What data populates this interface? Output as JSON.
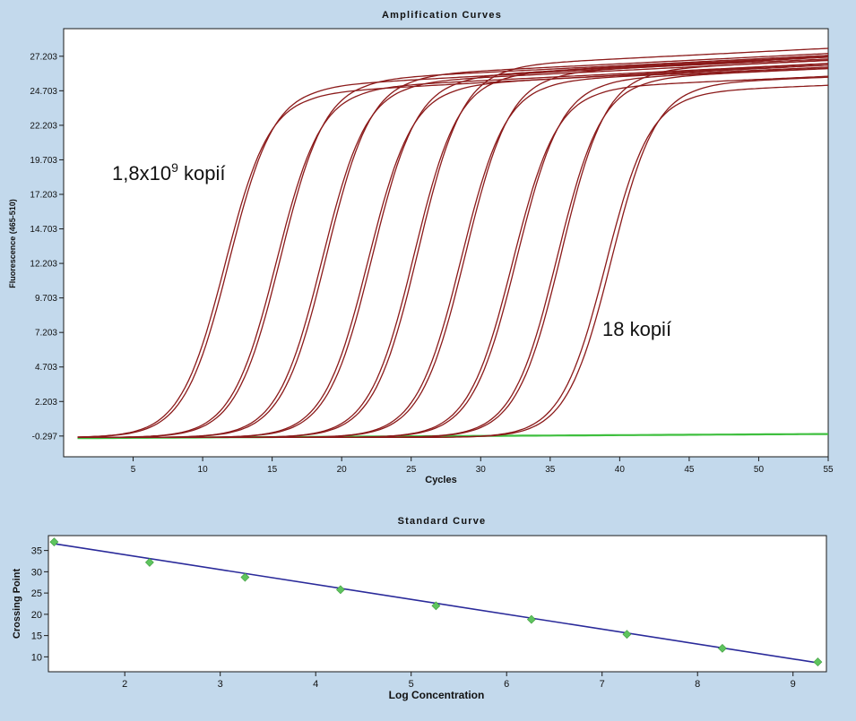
{
  "colors": {
    "background": "#c3d9ec",
    "plot_bg": "#ffffff",
    "sample_curve": "#8b1a1a",
    "negative_control": "#3fbf3f",
    "standard_line": "#2a2a9a",
    "standard_points": "#5ec45e"
  },
  "chart_data": [
    {
      "type": "line",
      "title": "Amplification Curves",
      "xlabel": "Cycles",
      "ylabel": "Fluorescence (465-510)",
      "xlim": [
        0,
        55
      ],
      "ylim": [
        -1.8,
        29.2
      ],
      "grid": false,
      "x_ticks": [
        5,
        10,
        15,
        20,
        25,
        30,
        35,
        40,
        45,
        50,
        55
      ],
      "x_tick_labels": [
        "5",
        "10",
        "15",
        "20",
        "25",
        "30",
        "35",
        "40",
        "45",
        "50",
        "55"
      ],
      "y_ticks": [
        -0.297,
        2.203,
        4.703,
        7.203,
        9.703,
        12.203,
        14.703,
        17.203,
        19.703,
        22.203,
        24.703,
        27.203
      ],
      "y_tick_labels": [
        "-0.297",
        "2.203",
        "4.703",
        "7.203",
        "9.703",
        "12.203",
        "14.703",
        "17.203",
        "19.703",
        "22.203",
        "24.703",
        "27.203"
      ],
      "series": [
        {
          "midpoints": [
            11.6,
            11.9
          ],
          "plateaus": [
            24.6,
            25.1
          ],
          "slope": 0.055
        },
        {
          "midpoints": [
            15.3,
            15.6
          ],
          "plateaus": [
            25.0,
            25.6
          ],
          "slope": 0.05
        },
        {
          "midpoints": [
            18.6,
            18.9
          ],
          "plateaus": [
            25.4,
            25.9
          ],
          "slope": 0.05
        },
        {
          "midpoints": [
            21.9,
            22.2
          ],
          "plateaus": [
            25.2,
            25.8
          ],
          "slope": 0.05
        },
        {
          "midpoints": [
            25.2,
            25.5
          ],
          "plateaus": [
            26.0,
            26.6
          ],
          "slope": 0.05
        },
        {
          "midpoints": [
            28.6,
            28.9
          ],
          "plateaus": [
            25.5,
            26.1
          ],
          "slope": 0.045
        },
        {
          "midpoints": [
            32.3,
            32.6
          ],
          "plateaus": [
            25.0,
            25.6
          ],
          "slope": 0.045
        },
        {
          "midpoints": [
            35.5,
            35.8
          ],
          "plateaus": [
            25.7,
            26.3
          ],
          "slope": 0.045
        },
        {
          "midpoints": [
            39.0,
            39.4
          ],
          "plateaus": [
            24.7,
            25.3
          ],
          "slope": 0.04
        }
      ],
      "baseline": {
        "y_start": -0.45,
        "y_end": -0.15
      },
      "annotations": [
        {
          "text_base": "1,8x10",
          "superscript": "9",
          "text_suffix": " kopií"
        },
        {
          "text": "18 kopií"
        }
      ]
    },
    {
      "type": "scatter",
      "title": "Standard Curve",
      "xlabel": "Log Concentration",
      "ylabel": "Crossing Point",
      "xlim": [
        1.2,
        9.35
      ],
      "ylim": [
        6.5,
        38.5
      ],
      "grid": false,
      "x_ticks": [
        2,
        3,
        4,
        5,
        6,
        7,
        8,
        9
      ],
      "x_tick_labels": [
        "2",
        "3",
        "4",
        "5",
        "6",
        "7",
        "8",
        "9"
      ],
      "y_ticks": [
        10,
        15,
        20,
        25,
        30,
        35
      ],
      "y_tick_labels": [
        "10",
        "15",
        "20",
        "25",
        "30",
        "35"
      ],
      "x": [
        1.26,
        2.26,
        3.26,
        4.26,
        5.26,
        6.26,
        7.26,
        8.26,
        9.26
      ],
      "y": [
        37.0,
        32.2,
        28.7,
        25.8,
        22.0,
        18.8,
        15.3,
        12.0,
        8.8
      ],
      "fit_line": {
        "x": [
          1.26,
          9.26
        ],
        "y": [
          36.6,
          8.6
        ]
      }
    }
  ]
}
